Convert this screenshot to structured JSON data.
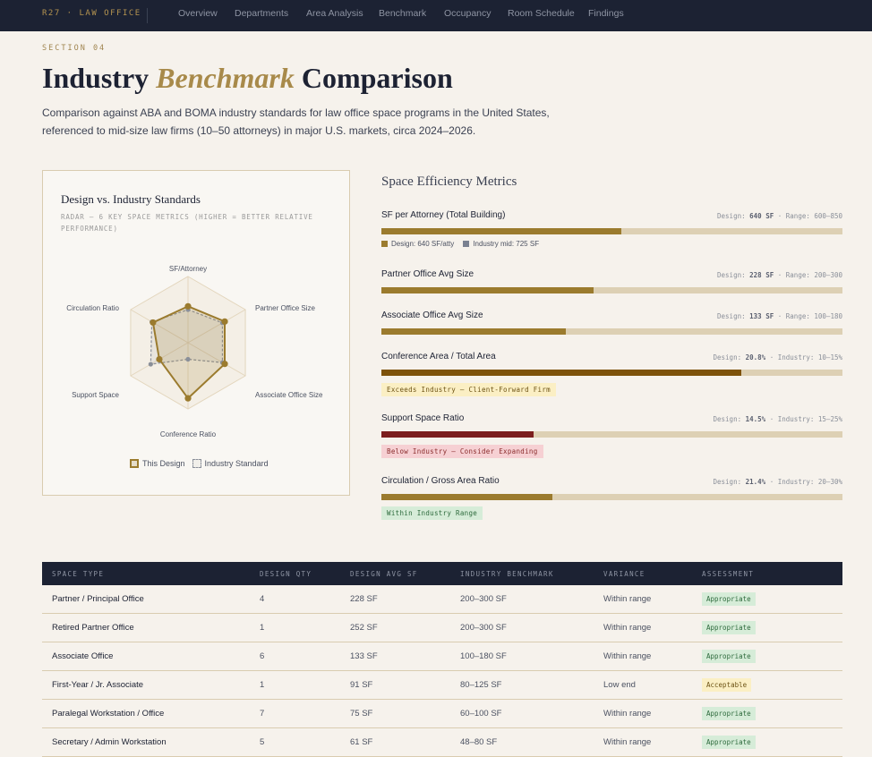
{
  "nav": {
    "brand": "R27 · LAW OFFICE",
    "links": [
      "Overview",
      "Departments",
      "Area Analysis",
      "Benchmark",
      "Occupancy",
      "Room Schedule",
      "Findings"
    ]
  },
  "header": {
    "eyebrow": "SECTION 04",
    "title_pre": "Industry ",
    "title_em": "Benchmark",
    "title_post": " Comparison",
    "subtitle": "Comparison against ABA and BOMA industry standards for law office space programs in the United States, referenced to mid-size law firms (10–50 attorneys) in major U.S. markets, circa 2024–2026."
  },
  "radar": {
    "title": "Design vs. Industry Standards",
    "subtitle": "RADAR — 6 KEY SPACE METRICS (HIGHER = BETTER RELATIVE PERFORMANCE)",
    "axes": [
      "SF/Attorney",
      "Partner Office Size",
      "Associate Office Size",
      "Conference Ratio",
      "Support Space",
      "Circulation Ratio"
    ],
    "design": [
      0.55,
      0.64,
      0.64,
      0.84,
      0.5,
      0.61
    ],
    "industry": [
      0.5,
      0.6,
      0.6,
      0.25,
      0.65,
      0.63
    ],
    "legend_design": "This Design",
    "legend_industry": "Industry Standard",
    "colors": {
      "design": "#9b7b2e",
      "industry": "#8a8f99"
    }
  },
  "metrics": {
    "title": "Space Efficiency Metrics",
    "items": [
      {
        "label": "SF per Attorney (Total Building)",
        "meta_pre": "Design: ",
        "meta_val": "640 SF",
        "meta_post": " · Range: 600–850",
        "fill": 0.52,
        "color": "#9b7b2e"
      },
      {
        "label": "Partner Office Avg Size",
        "meta_pre": "Design: ",
        "meta_val": "228 SF",
        "meta_post": " · Range: 200–300",
        "fill": 0.46,
        "color": "#9b7b2e"
      },
      {
        "label": "Associate Office Avg Size",
        "meta_pre": "Design: ",
        "meta_val": "133 SF",
        "meta_post": " · Range: 100–180",
        "fill": 0.4,
        "color": "#9b7b2e"
      },
      {
        "label": "Conference Area / Total Area",
        "meta_pre": "Design: ",
        "meta_val": "20.8%",
        "meta_post": " · Industry: 10–15%",
        "fill": 0.78,
        "color": "#7d520a"
      },
      {
        "label": "Support Space Ratio",
        "meta_pre": "Design: ",
        "meta_val": "14.5%",
        "meta_post": " · Industry: 15–25%",
        "fill": 0.33,
        "color": "#7c1e1e"
      },
      {
        "label": "Circulation / Gross Area Ratio",
        "meta_pre": "Design: ",
        "meta_val": "21.4%",
        "meta_post": " · Industry: 20–30%",
        "fill": 0.37,
        "color": "#9b7b2e"
      }
    ],
    "sub_legend_design": "Design: 640 SF/atty",
    "sub_legend_industry": "Industry mid: 725 SF",
    "badges": {
      "exceed": "Exceeds Industry — Client-Forward Firm",
      "below": "Below Industry — Consider Expanding",
      "within": "Within Industry Range"
    }
  },
  "table": {
    "headers": [
      "SPACE TYPE",
      "DESIGN QTY",
      "DESIGN AVG SF",
      "INDUSTRY BENCHMARK",
      "VARIANCE",
      "ASSESSMENT"
    ],
    "rows": [
      {
        "type": "Partner / Principal Office",
        "qty": "4",
        "avg": "228 SF",
        "bench": "200–300 SF",
        "variance": "Within range",
        "assess": "Appropriate"
      },
      {
        "type": "Retired Partner Office",
        "qty": "1",
        "avg": "252 SF",
        "bench": "200–300 SF",
        "variance": "Within range",
        "assess": "Appropriate"
      },
      {
        "type": "Associate Office",
        "qty": "6",
        "avg": "133 SF",
        "bench": "100–180 SF",
        "variance": "Within range",
        "assess": "Appropriate"
      },
      {
        "type": "First-Year / Jr. Associate",
        "qty": "1",
        "avg": "91 SF",
        "bench": "80–125 SF",
        "variance": "Low end",
        "assess": "Acceptable"
      },
      {
        "type": "Paralegal Workstation / Office",
        "qty": "7",
        "avg": "75 SF",
        "bench": "60–100 SF",
        "variance": "Within range",
        "assess": "Appropriate"
      },
      {
        "type": "Secretary / Admin Workstation",
        "qty": "5",
        "avg": "61 SF",
        "bench": "48–80 SF",
        "variance": "Within range",
        "assess": "Appropriate"
      }
    ]
  }
}
